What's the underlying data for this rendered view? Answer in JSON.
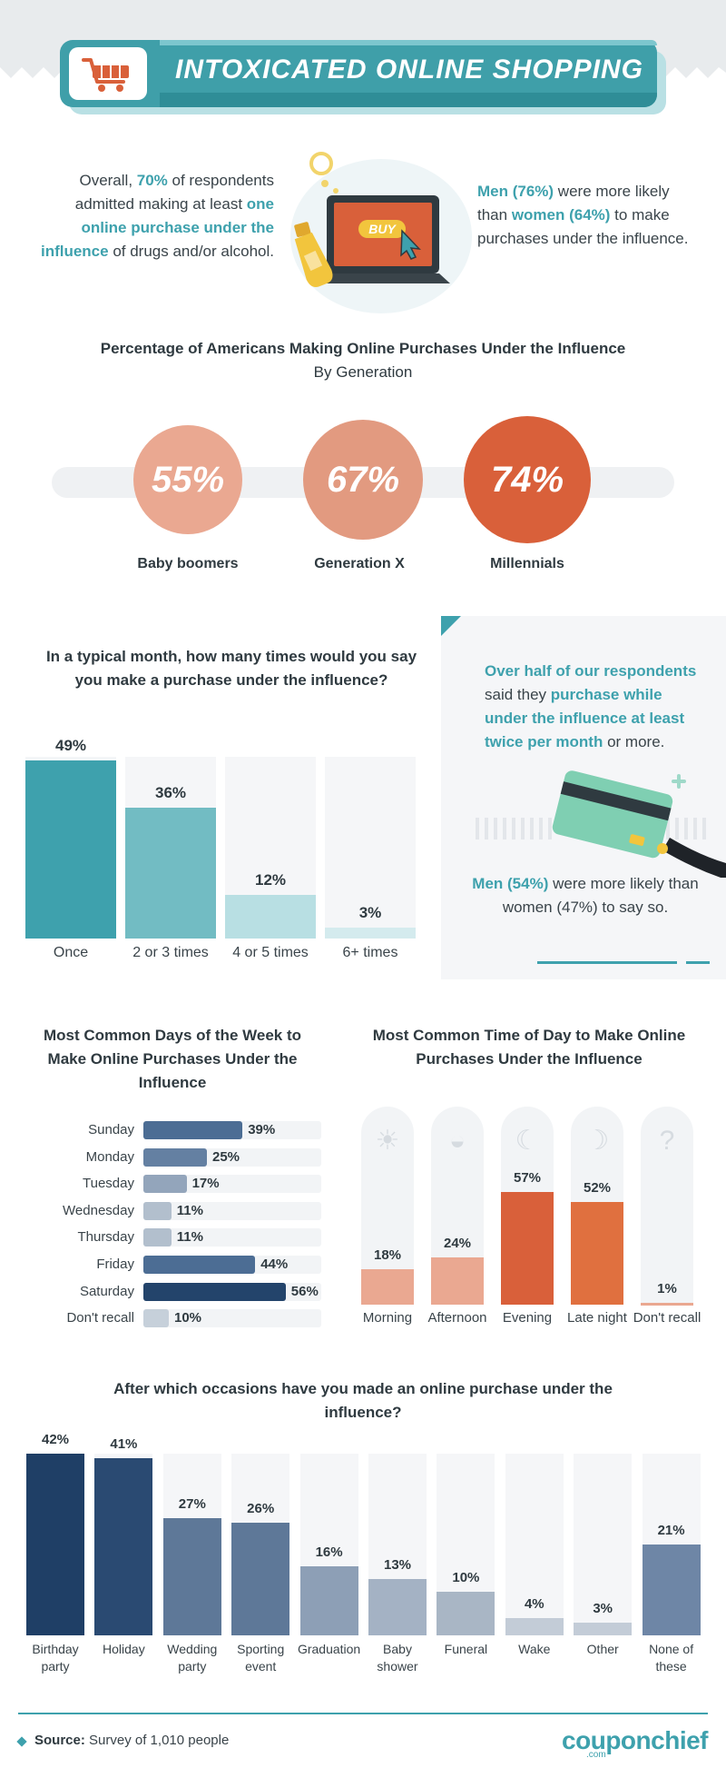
{
  "header": {
    "title": "INTOXICATED ONLINE SHOPPING"
  },
  "intro": {
    "left_p1": "Overall, ",
    "left_pct": "70%",
    "left_p2": " of respondents admitted making at least ",
    "left_hl": "one online purchase under the influence",
    "left_p3": " of drugs and/or alcohol.",
    "buy_label": "BUY",
    "right_men": "Men (76%)",
    "right_p1": " were more likely than ",
    "right_women": "women (64%)",
    "right_p2": " to make purchases under the influence."
  },
  "colors": {
    "teal": "#3ea1ad",
    "teal_light": "#72bcc3",
    "teal_pale": "#b8dfe3",
    "orange_dark": "#d9603a",
    "orange_mid": "#e29a80",
    "orange_light": "#eaa891",
    "navy": "#23446b",
    "slate": "#5a7696",
    "slate_light": "#a9b6c5"
  },
  "chart_data": [
    {
      "type": "bar",
      "title": "Percentage of Americans Making Online Purchases Under the Influence",
      "subtitle": "By Generation",
      "categories": [
        "Baby boomers",
        "Generation X",
        "Millennials"
      ],
      "values": [
        55,
        67,
        74
      ],
      "value_labels": [
        "55%",
        "67%",
        "74%"
      ]
    },
    {
      "type": "bar",
      "title": "In a typical month, how many times would you say you make a purchase under the influence?",
      "categories": [
        "Once",
        "2 or 3 times",
        "4 or 5 times",
        "6+ times"
      ],
      "values": [
        49,
        36,
        12,
        3
      ],
      "value_labels": [
        "49%",
        "36%",
        "12%",
        "3%"
      ]
    },
    {
      "type": "bar",
      "orientation": "horizontal",
      "title": "Most Common Days of the Week to Make Online Purchases Under the Influence",
      "categories": [
        "Sunday",
        "Monday",
        "Tuesday",
        "Wednesday",
        "Thursday",
        "Friday",
        "Saturday",
        "Don't recall"
      ],
      "values": [
        39,
        25,
        17,
        11,
        11,
        44,
        56,
        10
      ],
      "value_labels": [
        "39%",
        "25%",
        "17%",
        "11%",
        "11%",
        "44%",
        "56%",
        "10%"
      ]
    },
    {
      "type": "bar",
      "title": "Most Common Time of Day to Make Online Purchases Under the Influence",
      "categories": [
        "Morning",
        "Afternoon",
        "Evening",
        "Late night",
        "Don't recall"
      ],
      "values": [
        18,
        24,
        57,
        52,
        1
      ],
      "value_labels": [
        "18%",
        "24%",
        "57%",
        "52%",
        "1%"
      ],
      "icons": [
        "sunrise-icon",
        "sunset-icon",
        "moon-cloud-icon",
        "moon-stars-icon",
        "question-icon"
      ]
    },
    {
      "type": "bar",
      "title": "After which occasions have you made an online purchase under the influence?",
      "categories": [
        "Birthday party",
        "Holiday",
        "Wedding party",
        "Sporting event",
        "Graduation",
        "Baby shower",
        "Funeral",
        "Wake",
        "Other",
        "None of these"
      ],
      "values": [
        42,
        41,
        27,
        26,
        16,
        13,
        10,
        4,
        3,
        21
      ],
      "value_labels": [
        "42%",
        "41%",
        "27%",
        "26%",
        "16%",
        "13%",
        "10%",
        "4%",
        "3%",
        "21%"
      ]
    }
  ],
  "monthly_callout": {
    "hl": "Over half of our respondents",
    "p1": " said they ",
    "hl2": "purchase while under the influence at least twice per month",
    "p2": " or more.",
    "men": "Men (54%)",
    "p3": " were more likely than women (47%) to say so."
  },
  "footer": {
    "source_label": "Source:",
    "source_text": " Survey of 1,010 people",
    "brand": "couponchief",
    "brand_sub": ".com"
  }
}
